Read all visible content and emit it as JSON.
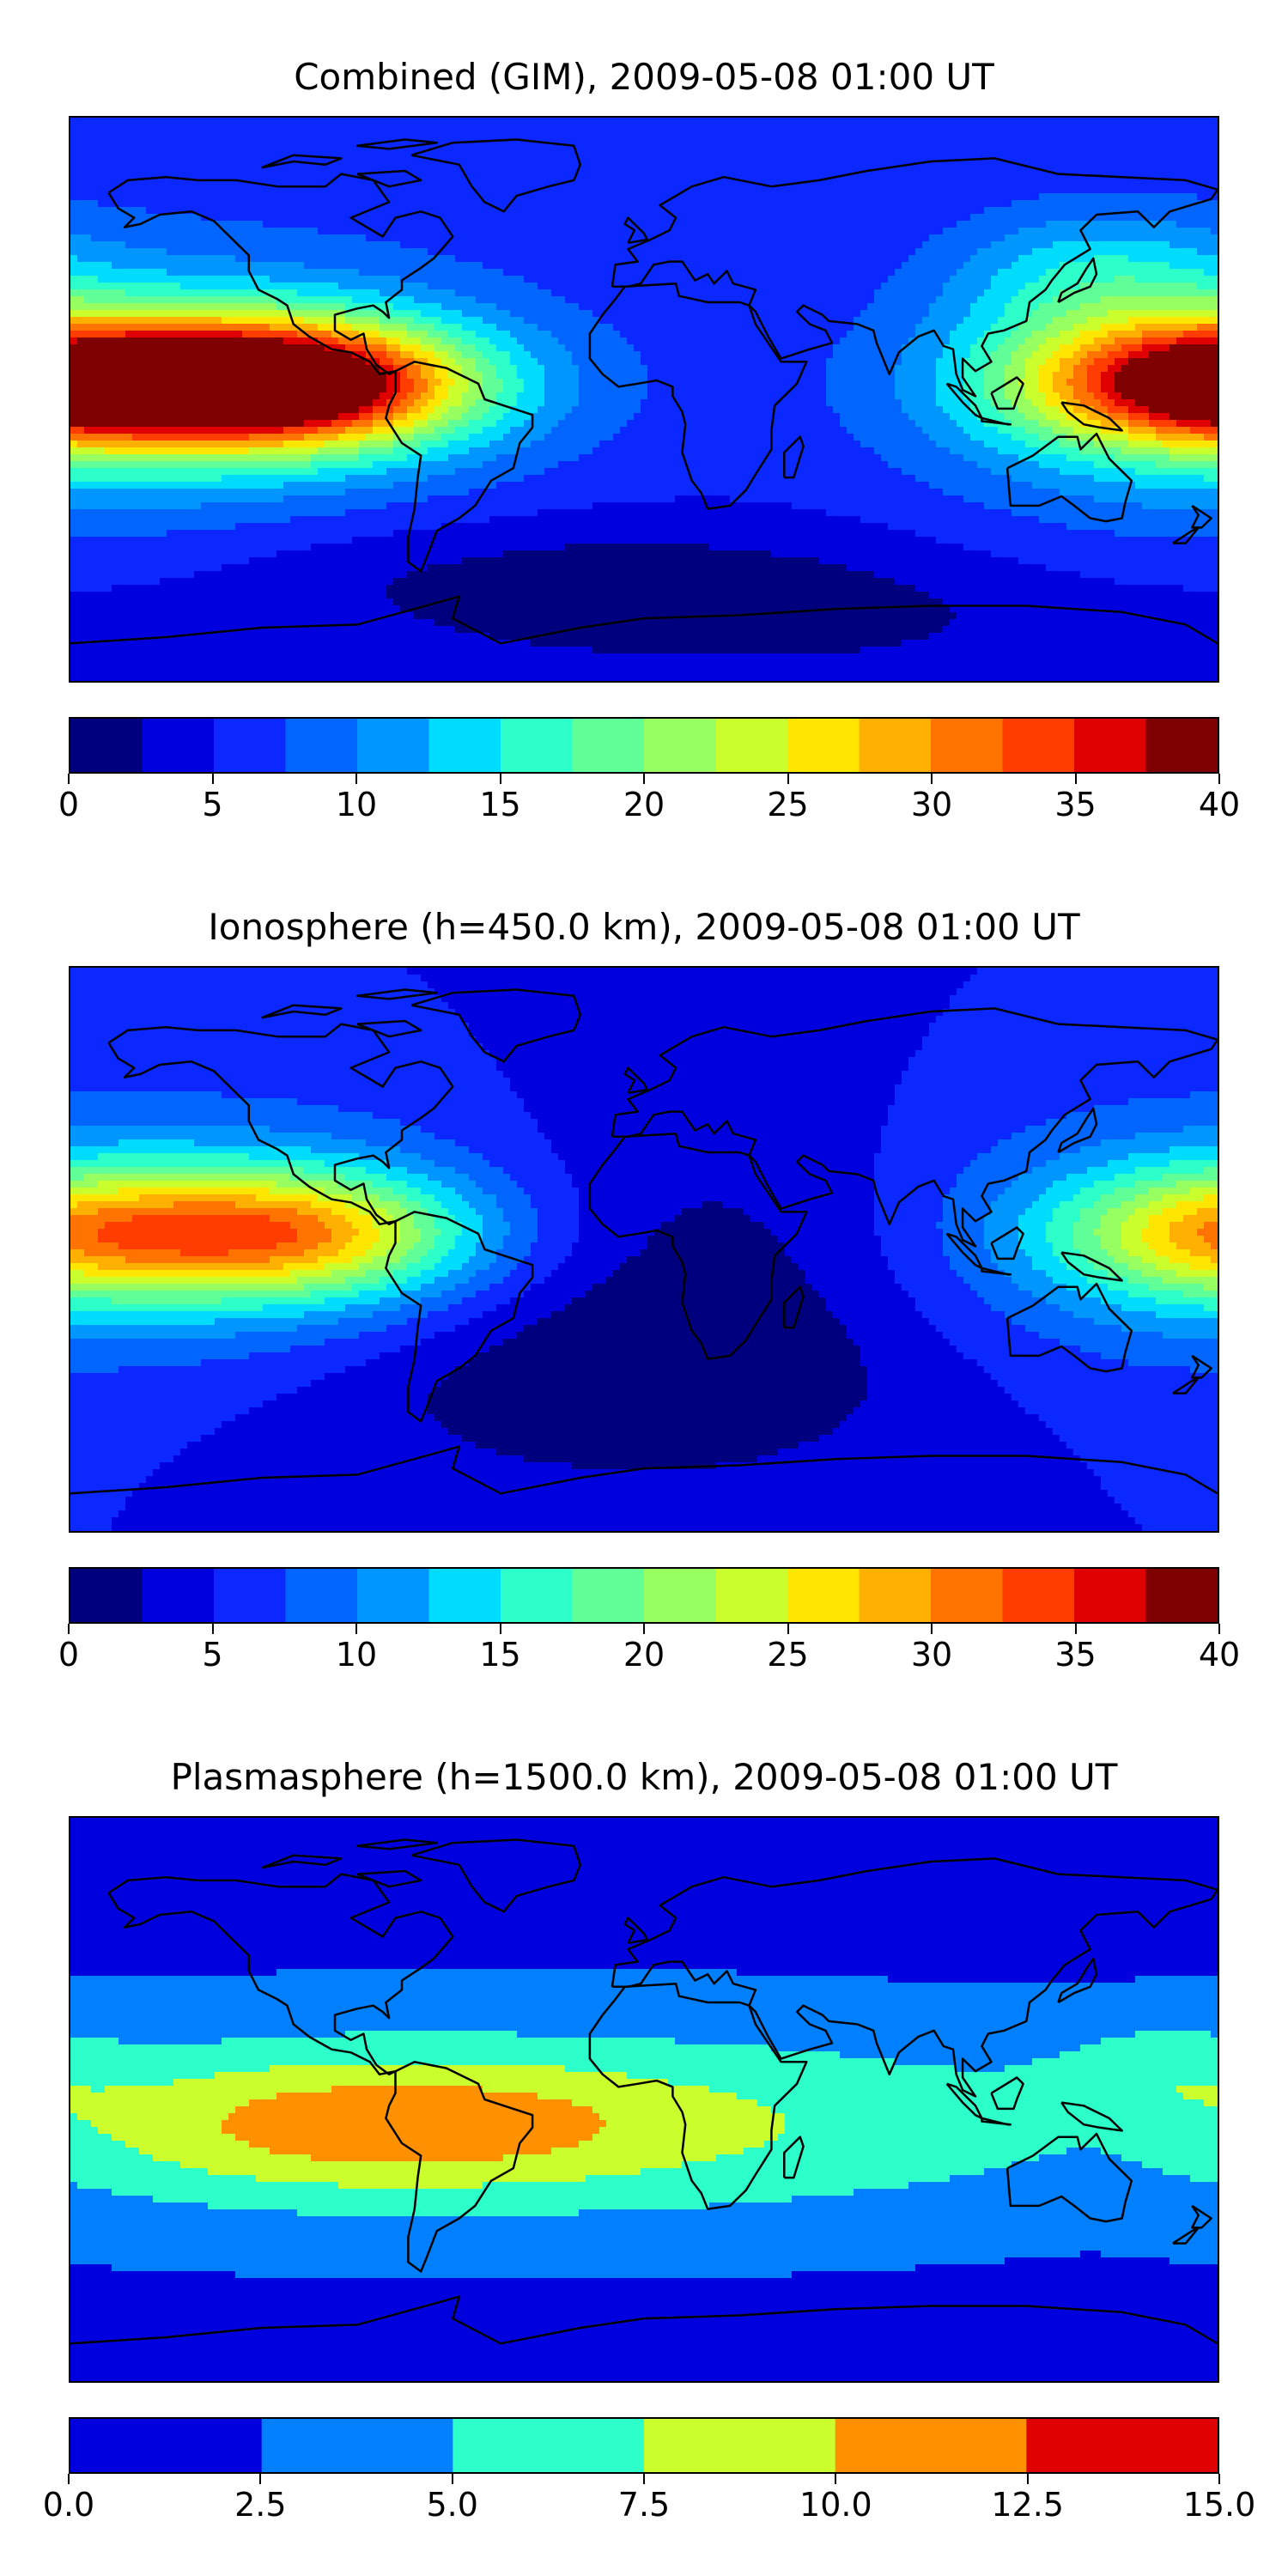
{
  "chart_data": [
    {
      "type": "heatmap",
      "title": "Combined (GIM), 2009-05-08 01:00 UT",
      "colorbar": {
        "levels": [
          0,
          2.5,
          5,
          7.5,
          10,
          12.5,
          15,
          17.5,
          20,
          22.5,
          25,
          27.5,
          30,
          32.5,
          35,
          37.5,
          40
        ],
        "colors": [
          "#00007f",
          "#0000df",
          "#0a28ff",
          "#0066ff",
          "#0096ff",
          "#00dcfe",
          "#2dffca",
          "#60ff97",
          "#97ff60",
          "#caff2d",
          "#ffe600",
          "#ffb000",
          "#ff7300",
          "#ff3d00",
          "#df0000",
          "#7f0000"
        ],
        "ticks": [
          0,
          5,
          10,
          15,
          20,
          25,
          30,
          35,
          40
        ],
        "tick_labels": [
          "0",
          "5",
          "10",
          "15",
          "20",
          "25",
          "30",
          "35",
          "40"
        ],
        "range": [
          0,
          40
        ]
      },
      "field": {
        "background_level": 5,
        "blobs": [
          {
            "lon": -112,
            "lat": 5,
            "value": 34,
            "sx": 40,
            "sy": 14
          },
          {
            "lon": -112,
            "lat": 5,
            "value": 6,
            "sx": 70,
            "sy": 32
          },
          {
            "lon": 175,
            "lat": 5,
            "value": 26,
            "sx": 40,
            "sy": 14
          },
          {
            "lon": 160,
            "lat": 5,
            "value": 8,
            "sx": 60,
            "sy": 30
          },
          {
            "lon": -40,
            "lat": -55,
            "value": -3,
            "sx": 80,
            "sy": 15
          },
          {
            "lon": 40,
            "lat": -70,
            "value": -3,
            "sx": 80,
            "sy": 15
          },
          {
            "lon": 140,
            "lat": 40,
            "value": 6,
            "sx": 30,
            "sy": 15
          }
        ]
      }
    },
    {
      "type": "heatmap",
      "title": "Ionosphere  (h=450.0 km), 2009-05-08 01:00 UT",
      "colorbar": {
        "levels": [
          0,
          2.5,
          5,
          7.5,
          10,
          12.5,
          15,
          17.5,
          20,
          22.5,
          25,
          27.5,
          30,
          32.5,
          35,
          37.5,
          40
        ],
        "colors": [
          "#00007f",
          "#0000df",
          "#0a28ff",
          "#0066ff",
          "#0096ff",
          "#00dcfe",
          "#2dffca",
          "#60ff97",
          "#97ff60",
          "#caff2d",
          "#ffe600",
          "#ffb000",
          "#ff7300",
          "#ff3d00",
          "#df0000",
          "#7f0000"
        ],
        "ticks": [
          0,
          5,
          10,
          15,
          20,
          25,
          30,
          35,
          40
        ],
        "tick_labels": [
          "0",
          "5",
          "10",
          "15",
          "20",
          "25",
          "30",
          "35",
          "40"
        ],
        "range": [
          0,
          40
        ]
      },
      "field": {
        "background_level": 5,
        "blobs": [
          {
            "lon": -112,
            "lat": 5,
            "value": 19,
            "sx": 40,
            "sy": 14
          },
          {
            "lon": -112,
            "lat": 5,
            "value": 6,
            "sx": 60,
            "sy": 28
          },
          {
            "lon": 178,
            "lat": 5,
            "value": 13,
            "sx": 35,
            "sy": 14
          },
          {
            "lon": 160,
            "lat": 5,
            "value": 6,
            "sx": 55,
            "sy": 28
          },
          {
            "lon": 10,
            "lat": -10,
            "value": -4,
            "sx": 55,
            "sy": 40
          },
          {
            "lon": -20,
            "lat": -45,
            "value": -3,
            "sx": 70,
            "sy": 20
          }
        ]
      }
    },
    {
      "type": "heatmap",
      "title": "Plasmasphere (h=1500.0 km), 2009-05-08 01:00 UT",
      "colorbar": {
        "levels": [
          0,
          2.5,
          5,
          7.5,
          10,
          12.5,
          15
        ],
        "colors": [
          "#0000df",
          "#0080ff",
          "#2dffca",
          "#caff2d",
          "#ff9000",
          "#df0000"
        ],
        "ticks": [
          0,
          2.5,
          5,
          7.5,
          10,
          12.5,
          15
        ],
        "tick_labels": [
          "0.0",
          "2.5",
          "5.0",
          "7.5",
          "10.0",
          "12.5",
          "15.0"
        ],
        "range": [
          0,
          15
        ]
      },
      "field": {
        "background_level": 2,
        "blobs": [
          {
            "lon": -40,
            "lat": -8,
            "value": 6.5,
            "sx": 140,
            "sy": 22
          },
          {
            "lon": -100,
            "lat": -8,
            "value": 3.5,
            "sx": 45,
            "sy": 14
          },
          {
            "lon": -40,
            "lat": -8,
            "value": 1.5,
            "sx": 35,
            "sy": 12
          },
          {
            "lon": 160,
            "lat": 10,
            "value": 2.5,
            "sx": 25,
            "sy": 12
          }
        ]
      }
    }
  ],
  "map_style": {
    "coastline_color": "#000000",
    "lon_range": [
      -180,
      180
    ],
    "lat_range": [
      -90,
      90
    ]
  }
}
